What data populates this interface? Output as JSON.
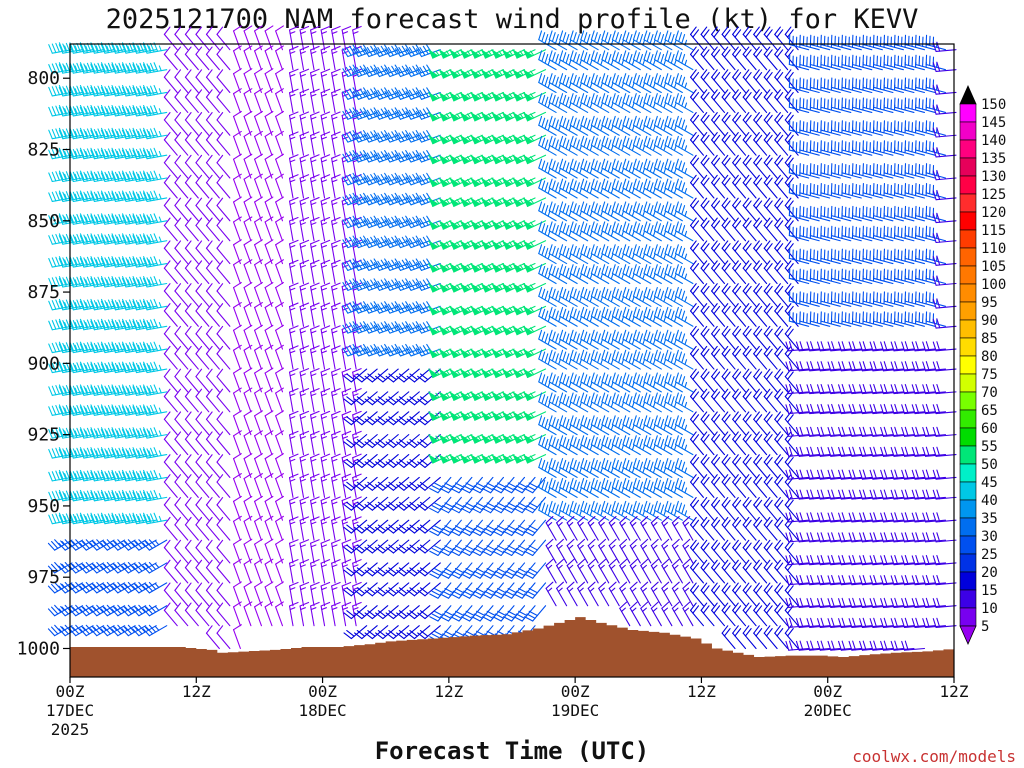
{
  "chart_data": {
    "type": "wind-barb-time-height",
    "title": "2025121700 NAM forecast wind profile (kt) for KEVV",
    "xlabel": "Forecast Time (UTC)",
    "ylabel": "",
    "y_scale": "pressure (hPa), increasing downward",
    "ylim": [
      1010,
      788
    ],
    "yticks": [
      800,
      825,
      850,
      875,
      900,
      925,
      950,
      975,
      1000
    ],
    "xlim_hours": [
      0,
      84
    ],
    "xticks": [
      {
        "hour": 0,
        "label": "00Z",
        "sub1": "17DEC",
        "sub2": "2025"
      },
      {
        "hour": 12,
        "label": "12Z",
        "sub1": "",
        "sub2": ""
      },
      {
        "hour": 24,
        "label": "00Z",
        "sub1": "18DEC",
        "sub2": ""
      },
      {
        "hour": 36,
        "label": "12Z",
        "sub1": "",
        "sub2": ""
      },
      {
        "hour": 48,
        "label": "00Z",
        "sub1": "19DEC",
        "sub2": ""
      },
      {
        "hour": 60,
        "label": "12Z",
        "sub1": "",
        "sub2": ""
      },
      {
        "hour": 72,
        "label": "00Z",
        "sub1": "20DEC",
        "sub2": ""
      },
      {
        "hour": 84,
        "label": "12Z",
        "sub1": "",
        "sub2": ""
      }
    ],
    "time_step_hours": 1,
    "levels_hpa": [
      790,
      797,
      805,
      812,
      820,
      827,
      835,
      842,
      850,
      857,
      865,
      872,
      880,
      887,
      895,
      902,
      910,
      917,
      925,
      932,
      940,
      947,
      955,
      962,
      970,
      977,
      985,
      992,
      1000
    ],
    "surface_pressure_hpa": [
      [
        0,
        999.5
      ],
      [
        6,
        999.5
      ],
      [
        10,
        999.5
      ],
      [
        13,
        1000.5
      ],
      [
        14,
        1001.5
      ],
      [
        19,
        1000.5
      ],
      [
        22,
        999.5
      ],
      [
        25,
        999.5
      ],
      [
        28,
        998.5
      ],
      [
        30,
        997.5
      ],
      [
        34,
        996.5
      ],
      [
        38,
        995.5
      ],
      [
        41,
        995
      ],
      [
        44,
        993
      ],
      [
        46,
        991
      ],
      [
        48,
        989
      ],
      [
        50,
        991
      ],
      [
        53,
        993.5
      ],
      [
        56,
        994.5
      ],
      [
        59,
        996.5
      ],
      [
        61,
        1000
      ],
      [
        63,
        1001.5
      ],
      [
        65,
        1003
      ],
      [
        68,
        1002.5
      ],
      [
        71,
        1002.5
      ],
      [
        73,
        1003
      ],
      [
        76,
        1002
      ],
      [
        78,
        1001.5
      ],
      [
        81,
        1001
      ],
      [
        84,
        1000
      ]
    ],
    "wind_regimes": [
      {
        "hours": [
          0,
          10
        ],
        "pressure": [
          788,
          960
        ],
        "speed_kt": 45,
        "direction_deg": 260
      },
      {
        "hours": [
          0,
          10
        ],
        "pressure": [
          960,
          1001
        ],
        "speed_kt": 33,
        "direction_deg": 240
      },
      {
        "hours": [
          10,
          16
        ],
        "pressure": [
          788,
          1001
        ],
        "speed_kt": 12,
        "direction_deg": 320
      },
      {
        "hours": [
          16,
          21
        ],
        "pressure": [
          788,
          1001
        ],
        "speed_kt": 8,
        "direction_deg": 340
      },
      {
        "hours": [
          21,
          28
        ],
        "pressure": [
          788,
          1001
        ],
        "speed_kt": 14,
        "direction_deg": 350
      },
      {
        "hours": [
          28,
          36
        ],
        "pressure": [
          788,
          900
        ],
        "speed_kt": 38,
        "direction_deg": 250
      },
      {
        "hours": [
          28,
          36
        ],
        "pressure": [
          900,
          998
        ],
        "speed_kt": 22,
        "direction_deg": 230
      },
      {
        "hours": [
          36,
          46
        ],
        "pressure": [
          788,
          940
        ],
        "speed_kt": 57,
        "direction_deg": 245
      },
      {
        "hours": [
          36,
          46
        ],
        "pressure": [
          940,
          995
        ],
        "speed_kt": 30,
        "direction_deg": 220
      },
      {
        "hours": [
          46,
          60
        ],
        "pressure": [
          788,
          960
        ],
        "speed_kt": 35,
        "direction_deg": 300
      },
      {
        "hours": [
          46,
          60
        ],
        "pressure": [
          960,
          1001
        ],
        "speed_kt": 15,
        "direction_deg": 330
      },
      {
        "hours": [
          60,
          70
        ],
        "pressure": [
          788,
          1003
        ],
        "speed_kt": 22,
        "direction_deg": 320
      },
      {
        "hours": [
          70,
          84
        ],
        "pressure": [
          788,
          890
        ],
        "speed_kt": 33,
        "direction_deg": 285
      },
      {
        "hours": [
          70,
          84
        ],
        "pressure": [
          890,
          1003
        ],
        "speed_kt": 18,
        "direction_deg": 265
      }
    ],
    "colorbar": {
      "labels": [
        "150",
        "145",
        "140",
        "135",
        "130",
        "125",
        "120",
        "115",
        "110",
        "105",
        "100",
        "95",
        "90",
        "85",
        "80",
        "75",
        "70",
        "65",
        "60",
        "55",
        "50",
        "45",
        "40",
        "35",
        "30",
        "25",
        "20",
        "15",
        "10",
        "5"
      ],
      "colors": [
        "#ff00ff",
        "#f200c8",
        "#ff007f",
        "#e6005a",
        "#ff0046",
        "#ff2d2d",
        "#ff0000",
        "#ff3c00",
        "#ff6400",
        "#ff7800",
        "#ff8c00",
        "#ffa000",
        "#ffbe00",
        "#ffdc00",
        "#ffff00",
        "#d2ff00",
        "#78ff00",
        "#32eb00",
        "#00dc00",
        "#00e678",
        "#00f0c8",
        "#00c8e6",
        "#0096f0",
        "#006ef0",
        "#0050f0",
        "#0032e6",
        "#0000dc",
        "#3c00e6",
        "#7800f0",
        "#9600f0"
      ]
    }
  },
  "credit": "coolwx.com/models"
}
